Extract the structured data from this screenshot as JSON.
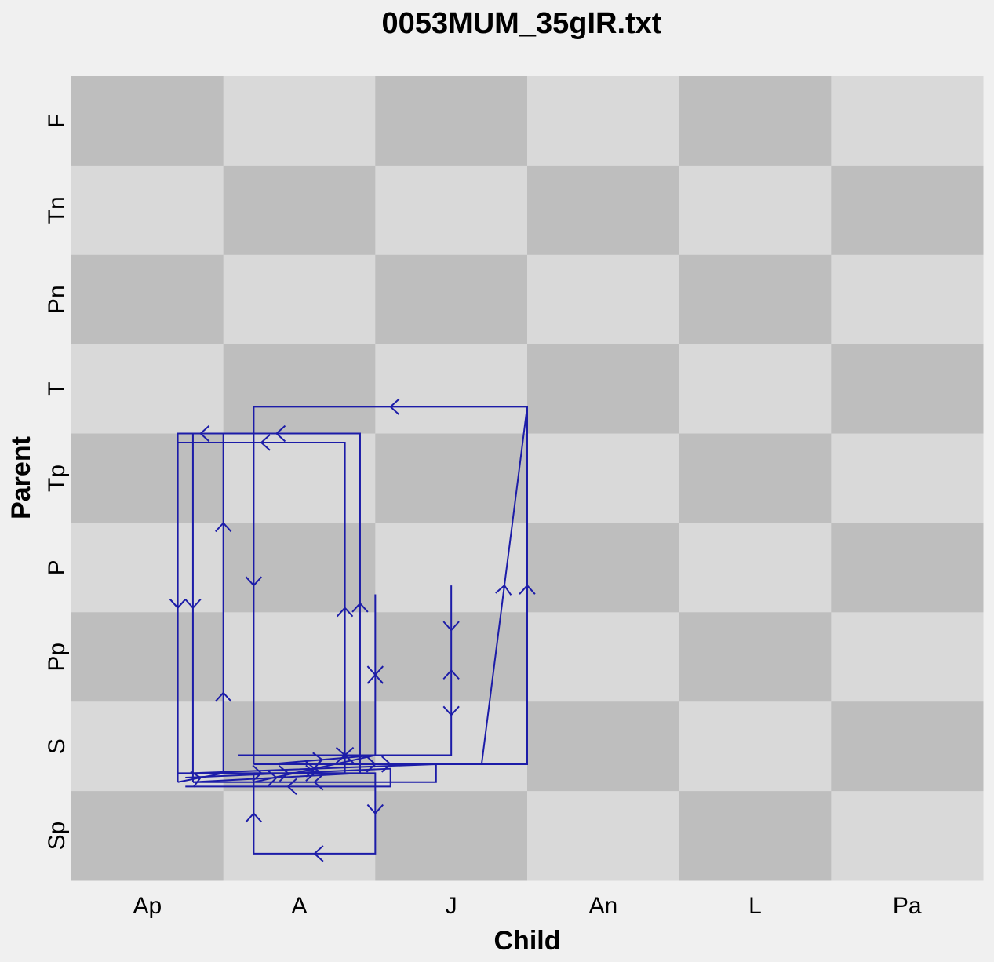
{
  "chart_data": {
    "type": "line",
    "title": "0053MUM_35gIR.txt",
    "xlabel": "Child",
    "ylabel": "Parent",
    "x_categories": [
      "Ap",
      "A",
      "J",
      "An",
      "L",
      "Pa"
    ],
    "y_categories": [
      "Sp",
      "S",
      "Pp",
      "P",
      "Tp",
      "T",
      "Pn",
      "Tn",
      "F"
    ],
    "grid": "checkerboard",
    "legend": "none",
    "colors": {
      "background": "#f0f0f0",
      "cell_dark": "#bebebe",
      "cell_light": "#d9d9d9",
      "path": "#1c1ca8"
    },
    "paths": [
      {
        "points": [
          [
            1.2,
            1.2
          ],
          [
            2.0,
            1.2
          ],
          [
            2.0,
            0.3
          ],
          [
            1.2,
            0.3
          ],
          [
            1.2,
            1.2
          ]
        ]
      },
      {
        "points": [
          [
            1.2,
            1.3
          ],
          [
            3.0,
            1.3
          ],
          [
            3.0,
            5.3
          ],
          [
            1.2,
            5.3
          ],
          [
            1.2,
            1.3
          ]
        ]
      },
      {
        "points": [
          [
            1.3,
            1.3
          ],
          [
            2.7,
            1.3
          ],
          [
            3.0,
            5.3
          ]
        ]
      },
      {
        "points": [
          [
            1.3,
            1.3
          ],
          [
            2.0,
            1.4
          ],
          [
            2.0,
            3.2
          ],
          [
            2.0,
            1.4
          ],
          [
            1.2,
            1.1
          ]
        ]
      },
      {
        "points": [
          [
            0.8,
            1.1
          ],
          [
            1.9,
            1.2
          ],
          [
            1.9,
            5.0
          ],
          [
            0.8,
            5.0
          ],
          [
            0.8,
            1.1
          ]
        ]
      },
      {
        "points": [
          [
            0.7,
            1.1
          ],
          [
            1.0,
            1.2
          ],
          [
            1.0,
            3.0
          ],
          [
            1.0,
            5.0
          ],
          [
            0.7,
            5.0
          ],
          [
            0.7,
            1.1
          ]
        ]
      },
      {
        "points": [
          [
            0.8,
            1.2
          ],
          [
            2.4,
            1.3
          ],
          [
            2.4,
            1.1
          ],
          [
            0.8,
            1.1
          ]
        ]
      },
      {
        "points": [
          [
            0.7,
            1.2
          ],
          [
            1.8,
            1.2
          ],
          [
            1.8,
            4.9
          ],
          [
            0.7,
            4.9
          ],
          [
            0.7,
            1.2
          ]
        ]
      },
      {
        "points": [
          [
            0.75,
            1.15
          ],
          [
            2.1,
            1.25
          ],
          [
            2.1,
            1.05
          ],
          [
            0.75,
            1.05
          ]
        ]
      },
      {
        "points": [
          [
            1.1,
            1.4
          ],
          [
            2.5,
            1.4
          ],
          [
            2.5,
            3.3
          ],
          [
            2.5,
            2.3
          ],
          [
            2.5,
            1.4
          ],
          [
            1.1,
            1.4
          ]
        ]
      }
    ]
  }
}
